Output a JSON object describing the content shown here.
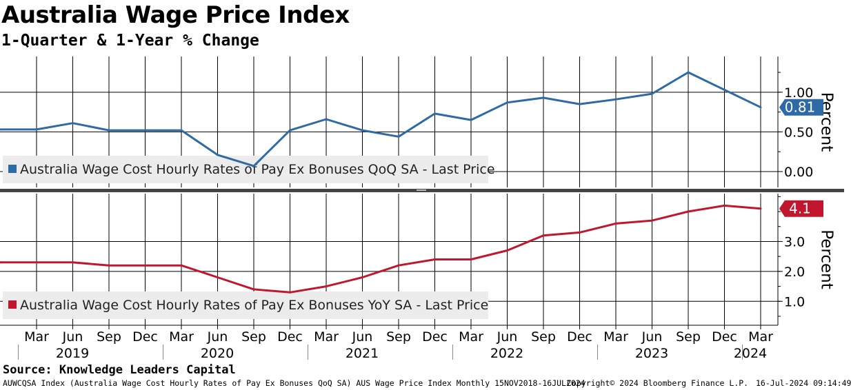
{
  "title": "Australia Wage Price Index",
  "subtitle": "1-Quarter & 1-Year % Change",
  "source": "Source: Knowledge Leaders Capital",
  "footer": {
    "description": "AUWCQSA Index (Australia Wage Cost Hourly Rates of Pay Ex Bonuses QoQ SA) AUS Wage Price Index  Monthly 15NOV2018-16JUL2024",
    "copyright": "Copyright© 2024 Bloomberg Finance L.P.",
    "timestamp": "16-Jul-2024 09:14:49"
  },
  "colors": {
    "qoq": "#2e6aa6",
    "yoy": "#c0172f",
    "grid": "#000000",
    "divider": "#444444",
    "legend_bg": "#ececec"
  },
  "chart_data": [
    {
      "type": "line",
      "ylabel": "Percent",
      "ylim": [
        -0.2,
        1.45
      ],
      "yticks": [
        0.0,
        0.5,
        1.0
      ],
      "ytick_labels": [
        "0.00",
        "0.50",
        "1.00"
      ],
      "last_value_label": "0.81",
      "legend_placement": "bottom-left",
      "grid": true,
      "series": [
        {
          "name": "Australia Wage Cost Hourly Rates of Pay Ex Bonuses QoQ SA - Last Price",
          "x": [
            "2018-12",
            "2019-03",
            "2019-06",
            "2019-09",
            "2019-12",
            "2020-03",
            "2020-06",
            "2020-09",
            "2020-12",
            "2021-03",
            "2021-06",
            "2021-09",
            "2021-12",
            "2022-03",
            "2022-06",
            "2022-09",
            "2022-12",
            "2023-03",
            "2023-06",
            "2023-09",
            "2023-12",
            "2024-03"
          ],
          "values": [
            0.53,
            0.53,
            0.61,
            0.52,
            0.52,
            0.52,
            0.21,
            0.07,
            0.52,
            0.66,
            0.52,
            0.44,
            0.73,
            0.65,
            0.87,
            0.93,
            0.85,
            0.91,
            0.98,
            1.25,
            1.03,
            0.81
          ]
        }
      ]
    },
    {
      "type": "line",
      "ylabel": "Percent",
      "ylim": [
        0.2,
        4.6
      ],
      "yticks": [
        1.0,
        2.0,
        3.0
      ],
      "ytick_labels": [
        "1.0",
        "2.0",
        "3.0"
      ],
      "last_value_label": "4.1",
      "legend_placement": "bottom-left",
      "grid": true,
      "series": [
        {
          "name": "Australia Wage Cost Hourly Rates of Pay Ex Bonuses YoY SA - Last Price",
          "x": [
            "2018-12",
            "2019-03",
            "2019-06",
            "2019-09",
            "2019-12",
            "2020-03",
            "2020-06",
            "2020-09",
            "2020-12",
            "2021-03",
            "2021-06",
            "2021-09",
            "2021-12",
            "2022-03",
            "2022-06",
            "2022-09",
            "2022-12",
            "2023-03",
            "2023-06",
            "2023-09",
            "2023-12",
            "2024-03"
          ],
          "values": [
            2.3,
            2.3,
            2.3,
            2.2,
            2.2,
            2.2,
            1.8,
            1.4,
            1.3,
            1.5,
            1.8,
            2.2,
            2.4,
            2.4,
            2.7,
            3.2,
            3.3,
            3.6,
            3.7,
            4.0,
            4.2,
            4.1
          ]
        }
      ]
    }
  ],
  "x_axis": {
    "month_labels": [
      "Mar",
      "Jun",
      "Sep",
      "Dec",
      "Mar",
      "Jun",
      "Sep",
      "Dec",
      "Mar",
      "Jun",
      "Sep",
      "Dec",
      "Mar",
      "Jun",
      "Sep",
      "Dec",
      "Mar",
      "Jun",
      "Sep",
      "Dec",
      "Mar"
    ],
    "year_labels": [
      "2019",
      "2020",
      "2021",
      "2022",
      "2023",
      "2024"
    ]
  }
}
